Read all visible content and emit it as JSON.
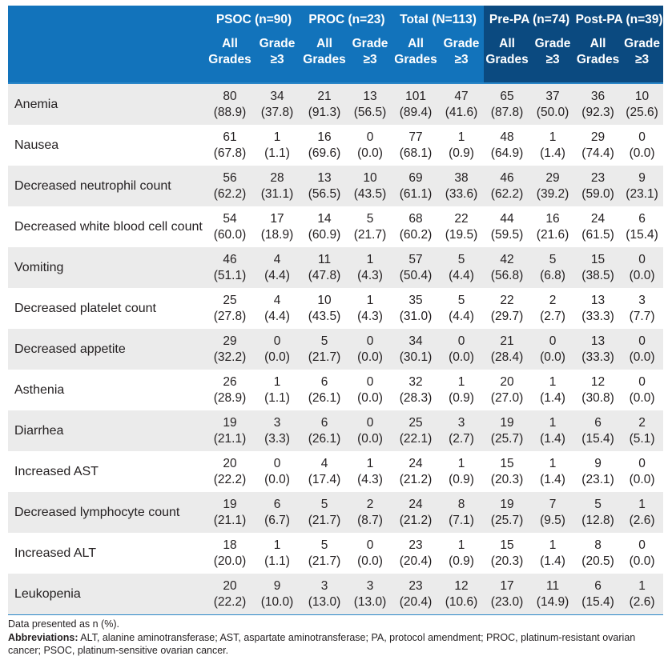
{
  "table": {
    "groups": [
      {
        "label": "PSOC (n=90)",
        "dark": false
      },
      {
        "label": "PROC (n=23)",
        "dark": false
      },
      {
        "label": "Total (N=113)",
        "dark": false
      },
      {
        "label": "Pre-PA (n=74)",
        "dark": true
      },
      {
        "label": "Post-PA (n=39)",
        "dark": true
      }
    ],
    "subheaders": {
      "all_line1": "All",
      "all_line2": "Grades",
      "g3_line1": "Grade",
      "g3_line2": "≥3"
    },
    "rows": [
      {
        "label": "Anemia",
        "cells": [
          [
            "80",
            "(88.9)"
          ],
          [
            "34",
            "(37.8)"
          ],
          [
            "21",
            "(91.3)"
          ],
          [
            "13",
            "(56.5)"
          ],
          [
            "101",
            "(89.4)"
          ],
          [
            "47",
            "(41.6)"
          ],
          [
            "65",
            "(87.8)"
          ],
          [
            "37",
            "(50.0)"
          ],
          [
            "36",
            "(92.3)"
          ],
          [
            "10",
            "(25.6)"
          ]
        ]
      },
      {
        "label": "Nausea",
        "cells": [
          [
            "61",
            "(67.8)"
          ],
          [
            "1",
            "(1.1)"
          ],
          [
            "16",
            "(69.6)"
          ],
          [
            "0",
            "(0.0)"
          ],
          [
            "77",
            "(68.1)"
          ],
          [
            "1",
            "(0.9)"
          ],
          [
            "48",
            "(64.9)"
          ],
          [
            "1",
            "(1.4)"
          ],
          [
            "29",
            "(74.4)"
          ],
          [
            "0",
            "(0.0)"
          ]
        ]
      },
      {
        "label": "Decreased neutrophil count",
        "cells": [
          [
            "56",
            "(62.2)"
          ],
          [
            "28",
            "(31.1)"
          ],
          [
            "13",
            "(56.5)"
          ],
          [
            "10",
            "(43.5)"
          ],
          [
            "69",
            "(61.1)"
          ],
          [
            "38",
            "(33.6)"
          ],
          [
            "46",
            "(62.2)"
          ],
          [
            "29",
            "(39.2)"
          ],
          [
            "23",
            "(59.0)"
          ],
          [
            "9",
            "(23.1)"
          ]
        ]
      },
      {
        "label": "Decreased white blood cell count",
        "cells": [
          [
            "54",
            "(60.0)"
          ],
          [
            "17",
            "(18.9)"
          ],
          [
            "14",
            "(60.9)"
          ],
          [
            "5",
            "(21.7)"
          ],
          [
            "68",
            "(60.2)"
          ],
          [
            "22",
            "(19.5)"
          ],
          [
            "44",
            "(59.5)"
          ],
          [
            "16",
            "(21.6)"
          ],
          [
            "24",
            "(61.5)"
          ],
          [
            "6",
            "(15.4)"
          ]
        ]
      },
      {
        "label": "Vomiting",
        "cells": [
          [
            "46",
            "(51.1)"
          ],
          [
            "4",
            "(4.4)"
          ],
          [
            "11",
            "(47.8)"
          ],
          [
            "1",
            "(4.3)"
          ],
          [
            "57",
            "(50.4)"
          ],
          [
            "5",
            "(4.4)"
          ],
          [
            "42",
            "(56.8)"
          ],
          [
            "5",
            "(6.8)"
          ],
          [
            "15",
            "(38.5)"
          ],
          [
            "0",
            "(0.0)"
          ]
        ]
      },
      {
        "label": "Decreased platelet count",
        "cells": [
          [
            "25",
            "(27.8)"
          ],
          [
            "4",
            "(4.4)"
          ],
          [
            "10",
            "(43.5)"
          ],
          [
            "1",
            "(4.3)"
          ],
          [
            "35",
            "(31.0)"
          ],
          [
            "5",
            "(4.4)"
          ],
          [
            "22",
            "(29.7)"
          ],
          [
            "2",
            "(2.7)"
          ],
          [
            "13",
            "(33.3)"
          ],
          [
            "3",
            "(7.7)"
          ]
        ]
      },
      {
        "label": "Decreased appetite",
        "cells": [
          [
            "29",
            "(32.2)"
          ],
          [
            "0",
            "(0.0)"
          ],
          [
            "5",
            "(21.7)"
          ],
          [
            "0",
            "(0.0)"
          ],
          [
            "34",
            "(30.1)"
          ],
          [
            "0",
            "(0.0)"
          ],
          [
            "21",
            "(28.4)"
          ],
          [
            "0",
            "(0.0)"
          ],
          [
            "13",
            "(33.3)"
          ],
          [
            "0",
            "(0.0)"
          ]
        ]
      },
      {
        "label": "Asthenia",
        "cells": [
          [
            "26",
            "(28.9)"
          ],
          [
            "1",
            "(1.1)"
          ],
          [
            "6",
            "(26.1)"
          ],
          [
            "0",
            "(0.0)"
          ],
          [
            "32",
            "(28.3)"
          ],
          [
            "1",
            "(0.9)"
          ],
          [
            "20",
            "(27.0)"
          ],
          [
            "1",
            "(1.4)"
          ],
          [
            "12",
            "(30.8)"
          ],
          [
            "0",
            "(0.0)"
          ]
        ]
      },
      {
        "label": "Diarrhea",
        "cells": [
          [
            "19",
            "(21.1)"
          ],
          [
            "3",
            "(3.3)"
          ],
          [
            "6",
            "(26.1)"
          ],
          [
            "0",
            "(0.0)"
          ],
          [
            "25",
            "(22.1)"
          ],
          [
            "3",
            "(2.7)"
          ],
          [
            "19",
            "(25.7)"
          ],
          [
            "1",
            "(1.4)"
          ],
          [
            "6",
            "(15.4)"
          ],
          [
            "2",
            "(5.1)"
          ]
        ]
      },
      {
        "label": "Increased AST",
        "cells": [
          [
            "20",
            "(22.2)"
          ],
          [
            "0",
            "(0.0)"
          ],
          [
            "4",
            "(17.4)"
          ],
          [
            "1",
            "(4.3)"
          ],
          [
            "24",
            "(21.2)"
          ],
          [
            "1",
            "(0.9)"
          ],
          [
            "15",
            "(20.3)"
          ],
          [
            "1",
            "(1.4)"
          ],
          [
            "9",
            "(23.1)"
          ],
          [
            "0",
            "(0.0)"
          ]
        ]
      },
      {
        "label": "Decreased lymphocyte count",
        "cells": [
          [
            "19",
            "(21.1)"
          ],
          [
            "6",
            "(6.7)"
          ],
          [
            "5",
            "(21.7)"
          ],
          [
            "2",
            "(8.7)"
          ],
          [
            "24",
            "(21.2)"
          ],
          [
            "8",
            "(7.1)"
          ],
          [
            "19",
            "(25.7)"
          ],
          [
            "7",
            "(9.5)"
          ],
          [
            "5",
            "(12.8)"
          ],
          [
            "1",
            "(2.6)"
          ]
        ]
      },
      {
        "label": "Increased ALT",
        "cells": [
          [
            "18",
            "(20.0)"
          ],
          [
            "1",
            "(1.1)"
          ],
          [
            "5",
            "(21.7)"
          ],
          [
            "0",
            "(0.0)"
          ],
          [
            "23",
            "(20.4)"
          ],
          [
            "1",
            "(0.9)"
          ],
          [
            "15",
            "(20.3)"
          ],
          [
            "1",
            "(1.4)"
          ],
          [
            "8",
            "(20.5)"
          ],
          [
            "0",
            "(0.0)"
          ]
        ]
      },
      {
        "label": "Leukopenia",
        "cells": [
          [
            "20",
            "(22.2)"
          ],
          [
            "9",
            "(10.0)"
          ],
          [
            "3",
            "(13.0)"
          ],
          [
            "3",
            "(13.0)"
          ],
          [
            "23",
            "(20.4)"
          ],
          [
            "12",
            "(10.6)"
          ],
          [
            "17",
            "(23.0)"
          ],
          [
            "11",
            "(14.9)"
          ],
          [
            "6",
            "(15.4)"
          ],
          [
            "1",
            "(2.6)"
          ]
        ]
      }
    ]
  },
  "footnote": {
    "line1": "Data presented as n (%).",
    "abbrev_label": "Abbreviations:",
    "abbrev_text": " ALT, alanine aminotransferase; AST, aspartate aminotransferase; PA, protocol amendment; PROC, platinum-resistant ovarian cancer; PSOC, platinum-sensitive ovarian cancer."
  },
  "colors": {
    "header_blue": "#1273bb",
    "header_dark": "#0b4a80",
    "stripe": "#ebebeb",
    "rule": "#2a86c8"
  }
}
